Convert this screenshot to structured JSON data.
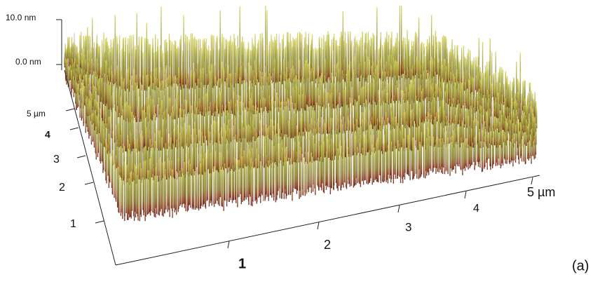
{
  "z_axis": {
    "labels": [
      "10.0 nm",
      "0.0 nm"
    ]
  },
  "y_axis": {
    "labels": [
      "5 µm",
      "4",
      "3",
      "2",
      "1"
    ]
  },
  "x_axis": {
    "labels": [
      "1",
      "2",
      "3",
      "4",
      "5 µm"
    ]
  },
  "panel_label": "(a)"
}
